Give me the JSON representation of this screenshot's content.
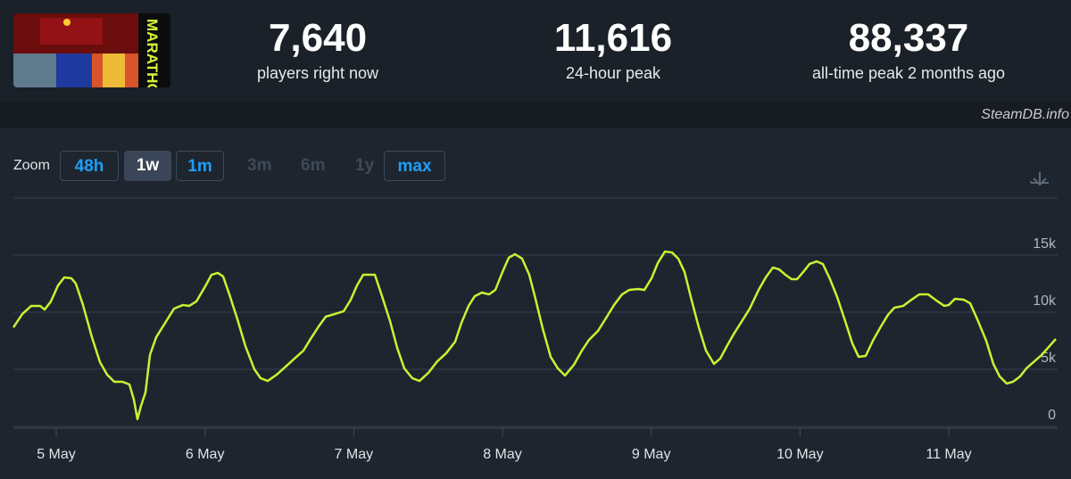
{
  "header": {
    "logo_text": "MARATHON",
    "stats": [
      {
        "value": "7,640",
        "label": "players right now"
      },
      {
        "value": "11,616",
        "label": "24-hour peak"
      },
      {
        "value": "88,337",
        "label": "all-time peak 2 months ago"
      }
    ]
  },
  "watermark": "SteamDB.info",
  "zoom": {
    "label": "Zoom",
    "options": [
      {
        "text": "48h",
        "state": "enabled"
      },
      {
        "text": "1w",
        "state": "active"
      },
      {
        "text": "1m",
        "state": "enabled"
      },
      {
        "text": "3m",
        "state": "disabled"
      },
      {
        "text": "6m",
        "state": "disabled"
      },
      {
        "text": "1y",
        "state": "disabled"
      },
      {
        "text": "max",
        "state": "enabled"
      }
    ]
  },
  "chart_data": {
    "type": "line",
    "x": [
      4.712,
      4.772,
      4.832,
      4.892,
      4.922,
      4.964,
      5.012,
      5.054,
      5.102,
      5.132,
      5.18,
      5.24,
      5.294,
      5.342,
      5.39,
      5.444,
      5.492,
      5.522,
      5.546,
      5.57,
      5.6,
      5.63,
      5.672,
      5.732,
      5.792,
      5.852,
      5.894,
      5.942,
      6.002,
      6.044,
      6.086,
      6.122,
      6.164,
      6.218,
      6.272,
      6.332,
      6.374,
      6.422,
      6.482,
      6.542,
      6.602,
      6.662,
      6.71,
      6.764,
      6.812,
      6.872,
      6.932,
      6.98,
      7.022,
      7.064,
      7.142,
      7.19,
      7.244,
      7.292,
      7.34,
      7.394,
      7.442,
      7.502,
      7.562,
      7.622,
      7.682,
      7.724,
      7.772,
      7.814,
      7.862,
      7.91,
      7.952,
      8.0,
      8.042,
      8.084,
      8.132,
      8.18,
      8.222,
      8.27,
      8.324,
      8.372,
      8.42,
      8.48,
      8.534,
      8.582,
      8.642,
      8.702,
      8.75,
      8.804,
      8.852,
      8.912,
      8.954,
      9.002,
      9.044,
      9.092,
      9.14,
      9.182,
      9.224,
      9.272,
      9.32,
      9.368,
      9.422,
      9.464,
      9.512,
      9.56,
      9.602,
      9.662,
      9.722,
      9.77,
      9.818,
      9.86,
      9.902,
      9.944,
      9.98,
      10.022,
      10.064,
      10.112,
      10.154,
      10.202,
      10.25,
      10.304,
      10.352,
      10.394,
      10.442,
      10.49,
      10.544,
      10.592,
      10.634,
      10.694,
      10.742,
      10.802,
      10.862,
      10.91,
      10.97,
      11.0,
      11.042,
      11.102,
      11.144,
      11.192,
      11.252,
      11.3,
      11.342,
      11.39,
      11.432,
      11.48,
      11.522,
      11.57,
      11.624,
      11.672,
      11.72
    ],
    "series": [
      {
        "color": "#c6f432",
        "values": [
          8670,
          9840,
          10550,
          10550,
          10230,
          10940,
          12340,
          13050,
          12970,
          12500,
          10630,
          7810,
          5630,
          4530,
          3910,
          3910,
          3670,
          2340,
          630,
          1800,
          2970,
          6250,
          7810,
          9060,
          10310,
          10630,
          10550,
          10940,
          12270,
          13280,
          13440,
          13130,
          11560,
          9380,
          7030,
          5000,
          4220,
          3980,
          4530,
          5230,
          5940,
          6640,
          7660,
          8750,
          9610,
          9840,
          10080,
          11090,
          12340,
          13280,
          13280,
          11410,
          9220,
          6880,
          5080,
          4220,
          3980,
          4690,
          5700,
          6410,
          7420,
          9060,
          10550,
          11410,
          11720,
          11560,
          11950,
          13520,
          14770,
          15080,
          14690,
          13280,
          11170,
          8590,
          6090,
          5080,
          4450,
          5390,
          6640,
          7580,
          8360,
          9610,
          10630,
          11560,
          11950,
          12030,
          11950,
          12970,
          14300,
          15310,
          15230,
          14690,
          13520,
          11020,
          8670,
          6640,
          5470,
          5940,
          7110,
          8200,
          9060,
          10310,
          11950,
          13050,
          13910,
          13750,
          13280,
          12890,
          12890,
          13520,
          14220,
          14450,
          14220,
          12890,
          11330,
          9220,
          7270,
          6090,
          6170,
          7500,
          8750,
          9770,
          10390,
          10550,
          11020,
          11560,
          11560,
          11090,
          10550,
          10630,
          11170,
          11090,
          10780,
          9380,
          7500,
          5470,
          4380,
          3750,
          3910,
          4380,
          5080,
          5630,
          6250,
          6950,
          7660
        ]
      }
    ],
    "xlim": [
      4.712,
      11.72
    ],
    "xticks": [
      {
        "value": 5,
        "label": "5 May"
      },
      {
        "value": 6,
        "label": "6 May"
      },
      {
        "value": 7,
        "label": "7 May"
      },
      {
        "value": 8,
        "label": "8 May"
      },
      {
        "value": 9,
        "label": "9 May"
      },
      {
        "value": 10,
        "label": "10 May"
      },
      {
        "value": 11,
        "label": "11 May"
      }
    ],
    "ylim": [
      0,
      20000
    ],
    "yticks": [
      0,
      {
        "value": 5000,
        "label": "5k"
      },
      {
        "value": 10000,
        "label": "10k"
      },
      {
        "value": 15000,
        "label": "15k"
      }
    ],
    "grid": true
  }
}
